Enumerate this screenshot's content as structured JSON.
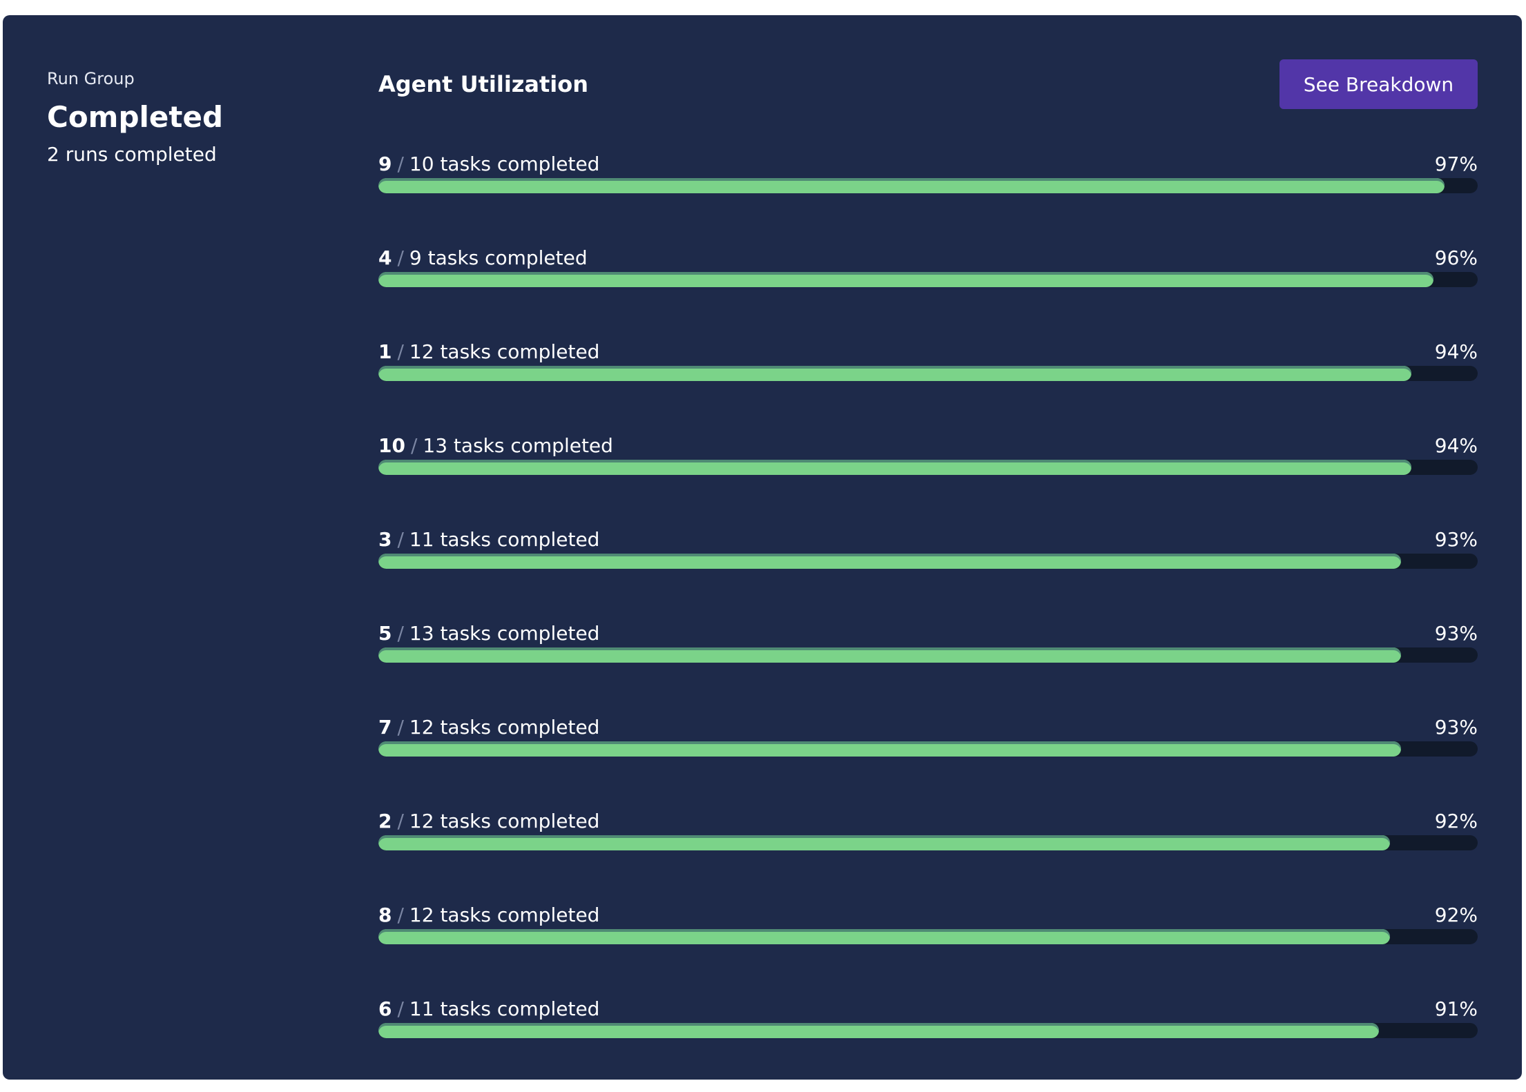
{
  "sidebar": {
    "label": "Run Group",
    "status": "Completed",
    "summary": "2 runs completed"
  },
  "header": {
    "title": "Agent Utilization",
    "button_label": "See Breakdown"
  },
  "colors": {
    "background": "#1e2a4a",
    "button": "#5236a8",
    "bar_fill": "#7bd389",
    "bar_track": "#111a2b"
  },
  "agents": [
    {
      "agent": "9",
      "total_text": "10 tasks completed",
      "pct_label": "97%",
      "pct": 97
    },
    {
      "agent": "4",
      "total_text": "9 tasks completed",
      "pct_label": "96%",
      "pct": 96
    },
    {
      "agent": "1",
      "total_text": "12 tasks completed",
      "pct_label": "94%",
      "pct": 94
    },
    {
      "agent": "10",
      "total_text": "13 tasks completed",
      "pct_label": "94%",
      "pct": 94
    },
    {
      "agent": "3",
      "total_text": "11 tasks completed",
      "pct_label": "93%",
      "pct": 93
    },
    {
      "agent": "5",
      "total_text": "13 tasks completed",
      "pct_label": "93%",
      "pct": 93
    },
    {
      "agent": "7",
      "total_text": "12 tasks completed",
      "pct_label": "93%",
      "pct": 93
    },
    {
      "agent": "2",
      "total_text": "12 tasks completed",
      "pct_label": "92%",
      "pct": 92
    },
    {
      "agent": "8",
      "total_text": "12 tasks completed",
      "pct_label": "92%",
      "pct": 92
    },
    {
      "agent": "6",
      "total_text": "11 tasks completed",
      "pct_label": "91%",
      "pct": 91
    }
  ]
}
